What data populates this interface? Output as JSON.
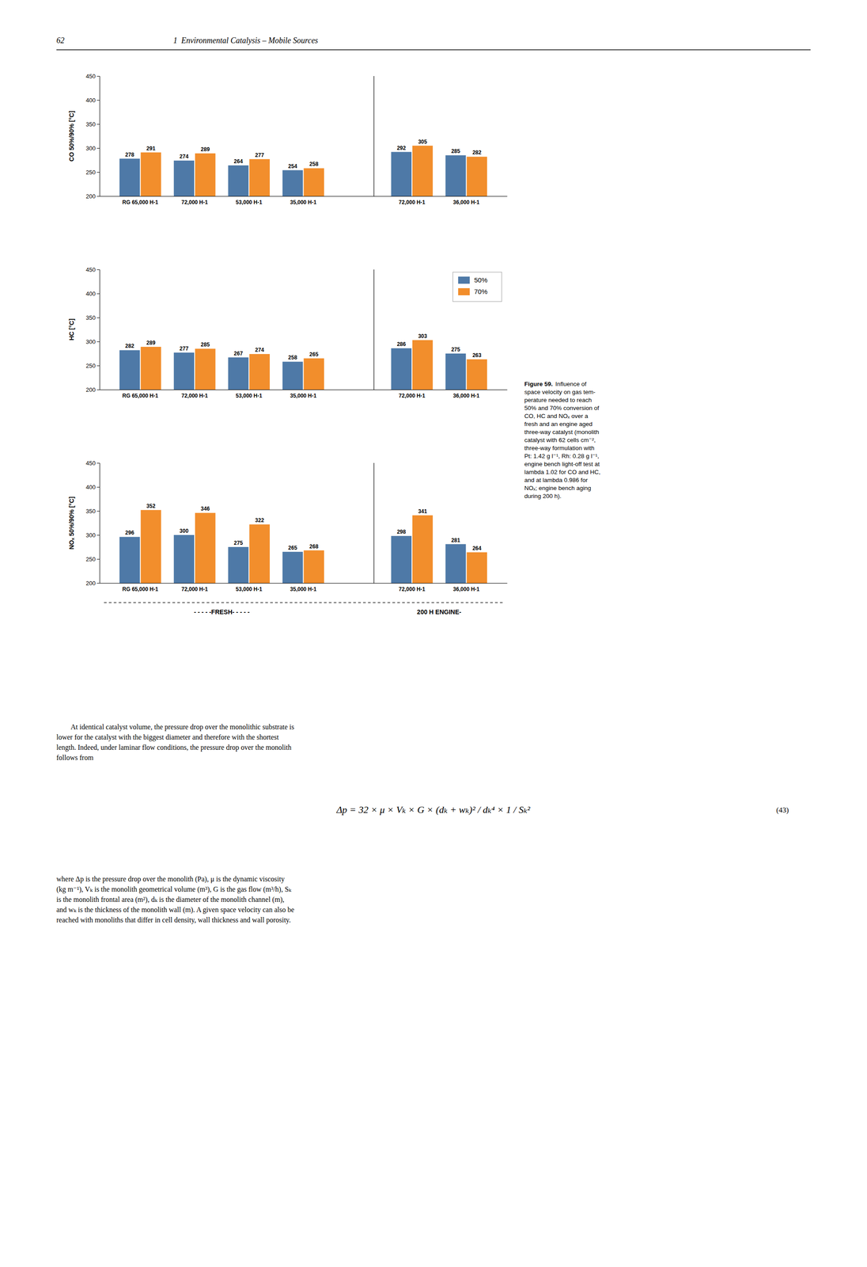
{
  "page_header_num": "62",
  "page_title": "1  Environmental Catalysis – Mobile Sources",
  "chart_data": [
    {
      "type": "bar",
      "y_label": "CO 50%/90% [°C]",
      "categories": [
        "RG 65,000 H-1",
        "72,000 H-1",
        "53,000 H-1",
        "35,000 H-1",
        null,
        "72,000 H-1",
        "36,000 H-1"
      ],
      "series": [
        {
          "values": [
            278,
            274,
            264,
            254,
            null,
            292,
            285
          ]
        },
        {
          "values": [
            291,
            289,
            277,
            258,
            null,
            305,
            282
          ]
        }
      ],
      "ylim": [
        200,
        450
      ],
      "yticks": [
        200,
        250,
        300,
        350,
        400,
        450
      ],
      "grid": false,
      "data_labels": true
    },
    {
      "type": "bar",
      "y_label": "HC [°C]",
      "categories": [
        "RG 65,000 H-1",
        "72,000 H-1",
        "53,000 H-1",
        "35,000 H-1",
        null,
        "72,000 H-1",
        "36,000 H-1"
      ],
      "series": [
        {
          "name": "50%",
          "values": [
            282,
            277,
            267,
            258,
            null,
            286,
            275
          ]
        },
        {
          "name": "70%",
          "values": [
            289,
            285,
            274,
            265,
            null,
            303,
            263
          ]
        }
      ],
      "ylim": [
        200,
        450
      ],
      "yticks": [
        200,
        250,
        300,
        350,
        400,
        450
      ],
      "grid": false,
      "data_labels": true,
      "legend": "upper right"
    },
    {
      "type": "bar",
      "y_label": "NOₓ 50%/90% [°C]",
      "categories": [
        "RG 65,000 H-1",
        "72,000 H-1",
        "53,000 H-1",
        "35,000 H-1",
        null,
        "72,000 H-1",
        "36,000 H-1"
      ],
      "series": [
        {
          "values": [
            296,
            300,
            275,
            265,
            null,
            298,
            281
          ]
        },
        {
          "values": [
            352,
            346,
            322,
            268,
            null,
            341,
            264
          ]
        }
      ],
      "ylim": [
        200,
        450
      ],
      "yticks": [
        200,
        250,
        300,
        350,
        400,
        450
      ],
      "grid": false,
      "data_labels": true,
      "annotations": [
        "- - - - -FRESH- - - - -",
        "200 H ENGINE-"
      ]
    }
  ],
  "figure_caption_bold": "Figure 59.",
  "figure_caption": [
    "Influence of",
    "space velocity on gas tem-",
    "perature needed to reach",
    "50% and 70% conversion of",
    "CO, HC and NOₓ over a",
    "fresh and an engine aged",
    "three-way catalyst (monolith",
    "catalyst with 62 cells cm⁻²,",
    "three-way formulation with",
    "Pt: 1.42 g l⁻¹, Rh: 0.28 g l⁻¹,",
    "engine bench light-off test at",
    "lambda 1.02 for CO and HC,",
    "and at lambda 0.986 for",
    "NOₓ; engine bench aging",
    "during 200 h)."
  ],
  "body_text": [
    "At identical catalyst volume, the pressure drop over the monolithic substrate is",
    "lower for the catalyst with the biggest diameter and therefore with the shortest",
    "length. Indeed, under laminar flow conditions, the pressure drop over the monolith",
    "follows from"
  ],
  "equation": "Δp = 32 × μ × Vₖ × G × (dₖ + wₖ)² / dₖ⁴ × 1 / Sₖ²",
  "equation_number": "(43)",
  "where_text": [
    "where Δp is the pressure drop over the monolith (Pa), μ is the dynamic viscosity",
    "(kg m⁻¹), Vₖ is the monolith geometrical volume (m³), G is the gas flow (m³/h), Sₖ",
    "is the monolith frontal area (m²), dₖ is the diameter of the monolith channel (m),",
    "and wₖ is the thickness of the monolith wall (m). A given space velocity can also be",
    "reached with monoliths that differ in cell density, wall thickness and wall porosity."
  ]
}
